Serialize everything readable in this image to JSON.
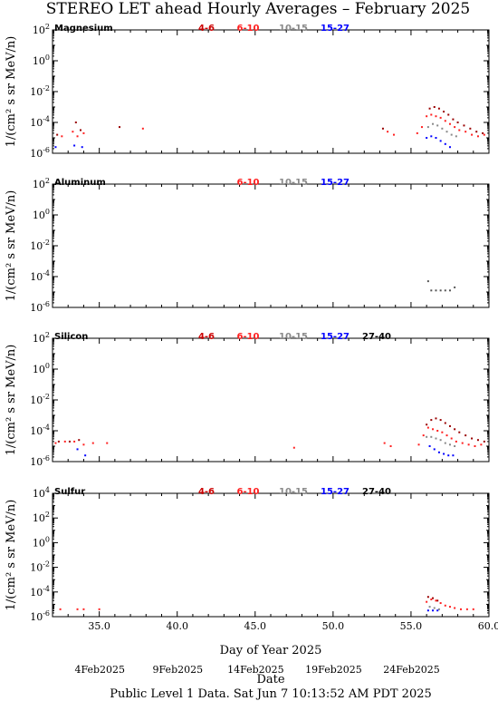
{
  "title": "STEREO LET ahead Hourly Averages – February 2025",
  "ylabel": "1/(cm² s sr MeV/n)",
  "xlabel": "Day of Year 2025",
  "date_label": "Date",
  "footer": "Public Level 1 Data.  Sat Jun  7 10:13:52 AM PDT 2025",
  "date_ticks": [
    {
      "day": 35.5,
      "label": "4Feb2025"
    },
    {
      "day": 40.5,
      "label": "9Feb2025"
    },
    {
      "day": 45.5,
      "label": "14Feb2025"
    },
    {
      "day": 50.5,
      "label": "19Feb2025"
    },
    {
      "day": 55.5,
      "label": "24Feb2025"
    }
  ],
  "chart_data": [
    {
      "type": "scatter",
      "panel": "Magnesium",
      "xlim": [
        32,
        60
      ],
      "ylog": true,
      "ylim_exp": [
        -6,
        2
      ],
      "x_tick_labels": [
        "35.0",
        "40.0",
        "45.0",
        "50.0",
        "55.0",
        "60.0"
      ],
      "y_tick_labels": [
        "10⁶",
        "10⁴",
        "10⁲",
        "10⁰",
        "10²"
      ],
      "legend": [
        {
          "label": "4-6",
          "color": "#cc0000"
        },
        {
          "label": "6-10",
          "color": "#ff2020"
        },
        {
          "label": "10-15",
          "color": "#888888"
        },
        {
          "label": "15-27",
          "color": "#0000ff"
        }
      ],
      "series": [
        {
          "name": "4-6",
          "color": "#990000",
          "points": [
            [
              32.3,
              -4.8
            ],
            [
              33.5,
              -4.0
            ],
            [
              33.8,
              -4.5
            ],
            [
              36.3,
              -4.3
            ],
            [
              53.2,
              -4.4
            ],
            [
              56.2,
              -3.1
            ],
            [
              56.5,
              -3.0
            ],
            [
              56.8,
              -3.1
            ],
            [
              57.1,
              -3.3
            ],
            [
              57.4,
              -3.5
            ],
            [
              57.7,
              -3.8
            ],
            [
              58.0,
              -4.0
            ],
            [
              58.4,
              -4.2
            ],
            [
              58.8,
              -4.4
            ],
            [
              59.2,
              -4.6
            ],
            [
              59.6,
              -4.7
            ]
          ]
        },
        {
          "name": "6-10",
          "color": "#ff2020",
          "points": [
            [
              32.6,
              -4.9
            ],
            [
              33.3,
              -4.6
            ],
            [
              33.6,
              -4.9
            ],
            [
              34.0,
              -4.7
            ],
            [
              37.8,
              -4.4
            ],
            [
              53.5,
              -4.6
            ],
            [
              53.9,
              -4.8
            ],
            [
              55.4,
              -4.7
            ],
            [
              55.7,
              -4.3
            ],
            [
              56.0,
              -3.6
            ],
            [
              56.3,
              -3.5
            ],
            [
              56.6,
              -3.6
            ],
            [
              56.9,
              -3.7
            ],
            [
              57.2,
              -3.9
            ],
            [
              57.5,
              -4.1
            ],
            [
              57.8,
              -4.3
            ],
            [
              58.1,
              -4.5
            ],
            [
              58.5,
              -4.6
            ],
            [
              58.9,
              -4.8
            ],
            [
              59.3,
              -4.9
            ],
            [
              59.7,
              -4.8
            ]
          ]
        },
        {
          "name": "10-15",
          "color": "#888888",
          "points": [
            [
              56.1,
              -4.3
            ],
            [
              56.4,
              -4.1
            ],
            [
              56.7,
              -4.2
            ],
            [
              57.0,
              -4.4
            ],
            [
              57.3,
              -4.6
            ],
            [
              57.6,
              -4.8
            ],
            [
              57.9,
              -4.9
            ]
          ]
        },
        {
          "name": "15-27",
          "color": "#0000ff",
          "points": [
            [
              32.2,
              -5.6
            ],
            [
              33.4,
              -5.5
            ],
            [
              33.9,
              -5.6
            ],
            [
              56.0,
              -5.0
            ],
            [
              56.3,
              -4.9
            ],
            [
              56.6,
              -5.0
            ],
            [
              56.9,
              -5.2
            ],
            [
              57.2,
              -5.4
            ],
            [
              57.5,
              -5.6
            ]
          ]
        }
      ]
    },
    {
      "type": "scatter",
      "panel": "Aluminum",
      "xlim": [
        32,
        60
      ],
      "ylog": true,
      "ylim_exp": [
        -6,
        2
      ],
      "x_tick_labels": [
        "35.0",
        "40.0",
        "45.0",
        "50.0",
        "55.0",
        "60.0"
      ],
      "y_tick_labels": [
        "10⁶",
        "10⁴",
        "10⁲",
        "10⁰",
        "10²"
      ],
      "legend": [
        {
          "label": "6-10",
          "color": "#ff2020"
        },
        {
          "label": "10-15",
          "color": "#888888"
        },
        {
          "label": "15-27",
          "color": "#0000ff"
        }
      ],
      "series": [
        {
          "name": "10-15",
          "color": "#555555",
          "points": [
            [
              56.1,
              -4.3
            ],
            [
              56.3,
              -4.9
            ],
            [
              56.6,
              -4.9
            ],
            [
              56.9,
              -4.9
            ],
            [
              57.2,
              -4.9
            ],
            [
              57.5,
              -4.9
            ],
            [
              57.8,
              -4.7
            ]
          ]
        }
      ]
    },
    {
      "type": "scatter",
      "panel": "Silicon",
      "xlim": [
        32,
        60
      ],
      "ylog": true,
      "ylim_exp": [
        -6,
        2
      ],
      "x_tick_labels": [
        "35.0",
        "40.0",
        "45.0",
        "50.0",
        "55.0",
        "60.0"
      ],
      "y_tick_labels": [
        "10⁶",
        "10⁴",
        "10⁲",
        "10⁰",
        "10²"
      ],
      "legend": [
        {
          "label": "4-6",
          "color": "#cc0000"
        },
        {
          "label": "6-10",
          "color": "#ff2020"
        },
        {
          "label": "10-15",
          "color": "#888888"
        },
        {
          "label": "15-27",
          "color": "#0000ff"
        },
        {
          "label": "27-40",
          "color": "#000000"
        }
      ],
      "series": [
        {
          "name": "4-6",
          "color": "#990000",
          "points": [
            [
              32.4,
              -4.7
            ],
            [
              33.1,
              -4.7
            ],
            [
              33.7,
              -4.6
            ],
            [
              56.0,
              -3.6
            ],
            [
              56.3,
              -3.3
            ],
            [
              56.6,
              -3.2
            ],
            [
              56.9,
              -3.3
            ],
            [
              57.2,
              -3.5
            ],
            [
              57.5,
              -3.7
            ],
            [
              57.8,
              -3.9
            ],
            [
              58.1,
              -4.1
            ],
            [
              58.5,
              -4.3
            ],
            [
              58.9,
              -4.5
            ],
            [
              59.3,
              -4.6
            ],
            [
              59.7,
              -4.7
            ]
          ]
        },
        {
          "name": "6-10",
          "color": "#ff2020",
          "points": [
            [
              32.2,
              -4.8
            ],
            [
              32.8,
              -4.7
            ],
            [
              33.4,
              -4.7
            ],
            [
              34.0,
              -4.9
            ],
            [
              34.6,
              -4.8
            ],
            [
              35.5,
              -4.8
            ],
            [
              47.5,
              -5.1
            ],
            [
              53.3,
              -4.8
            ],
            [
              53.7,
              -5.0
            ],
            [
              55.5,
              -4.9
            ],
            [
              55.8,
              -4.3
            ],
            [
              56.1,
              -3.8
            ],
            [
              56.4,
              -3.9
            ],
            [
              56.7,
              -4.0
            ],
            [
              57.0,
              -4.1
            ],
            [
              57.3,
              -4.3
            ],
            [
              57.6,
              -4.5
            ],
            [
              57.9,
              -4.7
            ],
            [
              58.3,
              -4.8
            ],
            [
              58.7,
              -4.9
            ],
            [
              59.1,
              -5.0
            ],
            [
              59.5,
              -4.9
            ]
          ]
        },
        {
          "name": "10-15",
          "color": "#888888",
          "points": [
            [
              56.0,
              -4.4
            ],
            [
              56.3,
              -4.4
            ],
            [
              56.6,
              -4.5
            ],
            [
              56.9,
              -4.6
            ],
            [
              57.2,
              -4.8
            ],
            [
              57.5,
              -4.9
            ],
            [
              57.8,
              -5.0
            ]
          ]
        },
        {
          "name": "15-27",
          "color": "#0000ff",
          "points": [
            [
              33.6,
              -5.2
            ],
            [
              34.1,
              -5.6
            ],
            [
              56.2,
              -5.0
            ],
            [
              56.5,
              -5.2
            ],
            [
              56.8,
              -5.4
            ],
            [
              57.1,
              -5.5
            ],
            [
              57.4,
              -5.6
            ],
            [
              57.7,
              -5.6
            ]
          ]
        }
      ]
    },
    {
      "type": "scatter",
      "panel": "Sulfur",
      "xlim": [
        32,
        60
      ],
      "ylog": true,
      "ylim_exp": [
        -6,
        4
      ],
      "x_tick_labels": [
        "35.0",
        "40.0",
        "45.0",
        "50.0",
        "55.0",
        "60.0"
      ],
      "y_tick_labels": [
        "10⁶",
        "10⁴",
        "10⁲",
        "10⁰",
        "10²",
        "10⁴"
      ],
      "legend": [
        {
          "label": "4-6",
          "color": "#cc0000"
        },
        {
          "label": "6-10",
          "color": "#ff2020"
        },
        {
          "label": "10-15",
          "color": "#888888"
        },
        {
          "label": "15-27",
          "color": "#0000ff"
        },
        {
          "label": "27-40",
          "color": "#000000"
        }
      ],
      "series": [
        {
          "name": "4-6",
          "color": "#990000",
          "points": [
            [
              56.1,
              -4.4
            ],
            [
              56.4,
              -4.5
            ],
            [
              56.7,
              -4.7
            ]
          ]
        },
        {
          "name": "6-10",
          "color": "#ff2020",
          "points": [
            [
              32.5,
              -5.4
            ],
            [
              33.6,
              -5.4
            ],
            [
              34.0,
              -5.4
            ],
            [
              35.0,
              -5.4
            ],
            [
              56.0,
              -4.8
            ],
            [
              56.3,
              -4.6
            ],
            [
              56.6,
              -4.7
            ],
            [
              56.9,
              -4.9
            ],
            [
              57.2,
              -5.1
            ],
            [
              57.5,
              -5.2
            ],
            [
              57.8,
              -5.3
            ],
            [
              58.2,
              -5.4
            ],
            [
              58.6,
              -5.4
            ],
            [
              59.0,
              -5.4
            ]
          ]
        },
        {
          "name": "10-15",
          "color": "#888888",
          "points": [
            [
              56.2,
              -5.2
            ],
            [
              56.5,
              -5.3
            ],
            [
              56.8,
              -5.4
            ]
          ]
        },
        {
          "name": "15-27",
          "color": "#0000ff",
          "points": [
            [
              56.1,
              -5.5
            ],
            [
              56.4,
              -5.5
            ],
            [
              56.7,
              -5.5
            ]
          ]
        }
      ]
    }
  ]
}
